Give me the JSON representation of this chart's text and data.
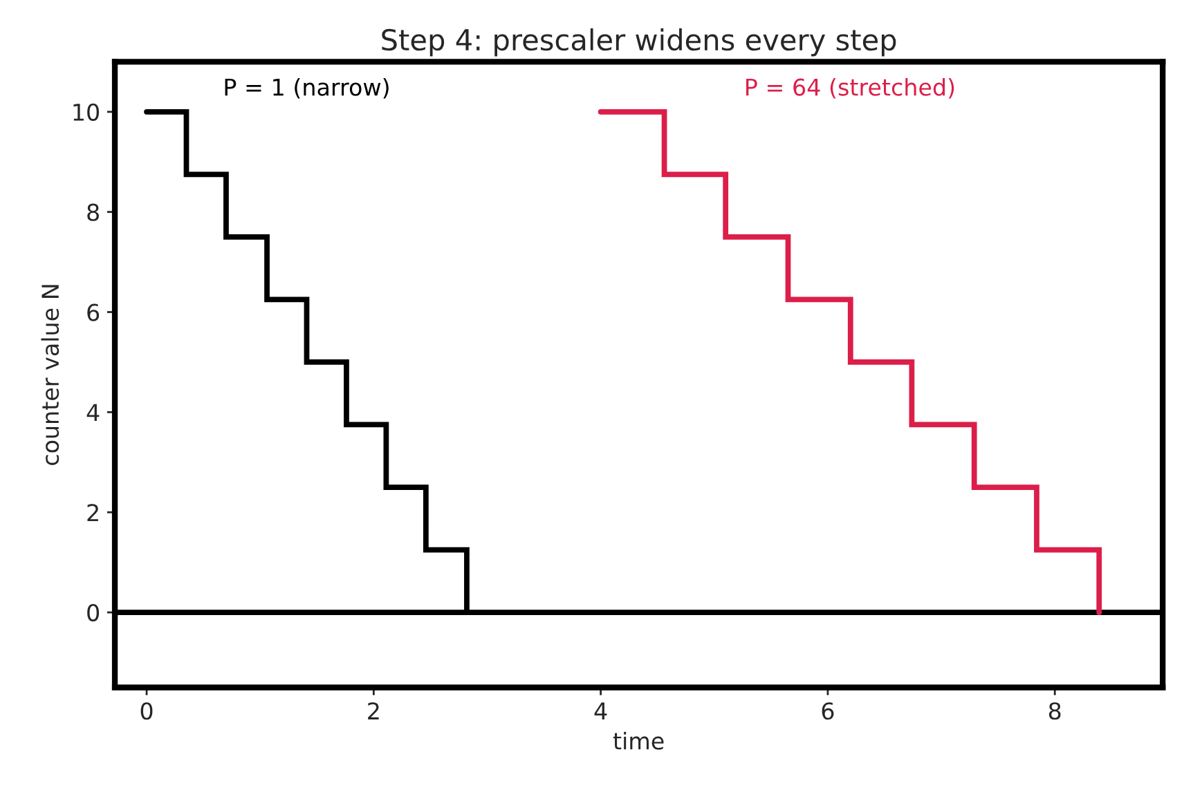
{
  "chart_data": {
    "type": "step",
    "title": "Step 4: prescaler widens every step",
    "xlabel": "time",
    "ylabel": "counter value N",
    "series": [
      {
        "name": "P = 1 (narrow)",
        "color": "#000000",
        "x": [
          0,
          0.35,
          0.7,
          1.06,
          1.41,
          1.76,
          2.11,
          2.46,
          2.82
        ],
        "values": [
          10,
          8.75,
          7.5,
          6.25,
          5,
          3.75,
          2.5,
          1.25,
          0
        ]
      },
      {
        "name": "P = 64 (stretched)",
        "color": "#dc1e4a",
        "x": [
          4,
          4.56,
          5.1,
          5.65,
          6.2,
          6.74,
          7.29,
          7.84,
          8.39
        ],
        "values": [
          10,
          8.75,
          7.5,
          6.25,
          5,
          3.75,
          2.5,
          1.25,
          0
        ]
      }
    ],
    "xlim": [
      -0.28,
      8.95
    ],
    "ylim": [
      -1.5,
      11
    ],
    "xticks": [
      0,
      2,
      4,
      6,
      8
    ],
    "yticks": [
      0,
      2,
      4,
      6,
      8,
      10
    ],
    "ref_lines": [
      {
        "axis": "y",
        "value": 0,
        "color": "#000000"
      }
    ],
    "grid": false,
    "legend": false
  }
}
